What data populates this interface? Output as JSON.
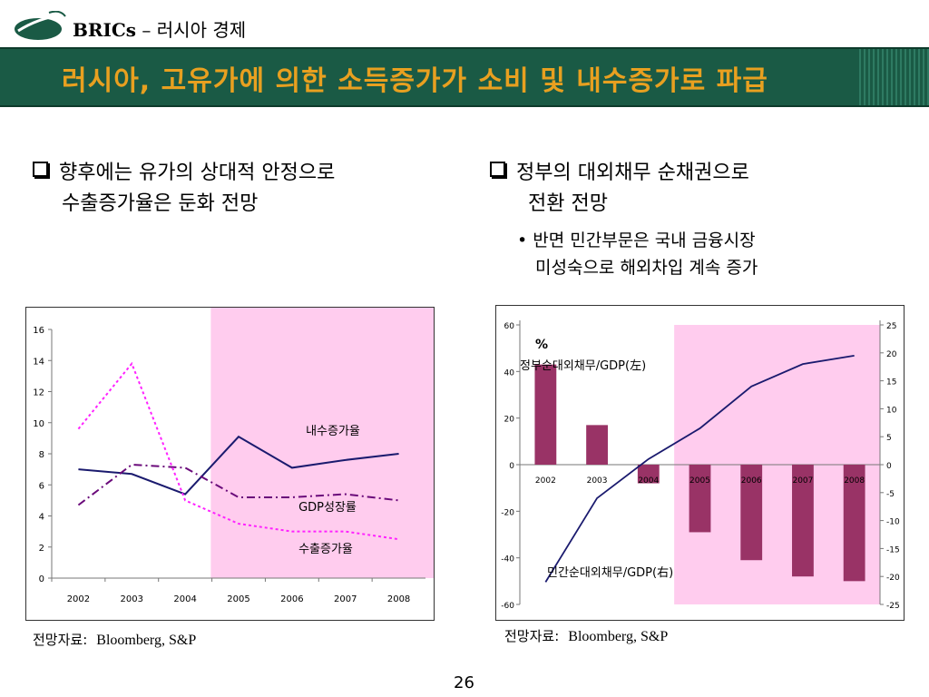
{
  "header": {
    "brand": "BRICs",
    "dash": " – ",
    "subtitle": "러시아 경제"
  },
  "banner": {
    "title": "러시아, 고유가에 의한 소득증가가 소비 및 내수증가로 파급"
  },
  "left_bullet": {
    "line1": "향후에는 유가의 상대적 안정으로",
    "line2": "수출증가율은 둔화 전망"
  },
  "right_bullet": {
    "line1": "정부의 대외채무 순채권으로",
    "line2": "전환 전망"
  },
  "right_sub": {
    "line1": "반면 민간부문은 국내 금융시장",
    "line2": "미성숙으로 해외차입 계속 증가"
  },
  "source_left": {
    "label": "전망자료:",
    "name": "Bloomberg, S&P"
  },
  "source_right": {
    "label": "전망자료:",
    "name": "Bloomberg, S&P"
  },
  "page_number": "26",
  "colors": {
    "banner": "#1a5a45",
    "banner_title": "#e8a020",
    "forecast_shade": "#ffccee",
    "navy": "#1a1a6e",
    "purple": "#6a0a7a",
    "magenta": "#ff22ff",
    "bar": "#993366"
  },
  "chart_data": [
    {
      "type": "line",
      "categories": [
        "2002",
        "2003",
        "2004",
        "2005",
        "2006",
        "2007",
        "2008"
      ],
      "ylim": [
        0,
        16
      ],
      "yticks": [
        "0",
        "2",
        "4",
        "6",
        "8",
        "10",
        "12",
        "14",
        "16"
      ],
      "forecast_from": "2005",
      "series": [
        {
          "name": "내수증가율",
          "style": "solid",
          "color": "#1a1a6e",
          "values": [
            7.0,
            6.7,
            5.4,
            9.1,
            7.1,
            7.6,
            8.0
          ]
        },
        {
          "name": "GDP성장률",
          "style": "dashdot",
          "color": "#6a0a7a",
          "values": [
            4.7,
            7.3,
            7.1,
            5.2,
            5.2,
            5.4,
            5.0
          ]
        },
        {
          "name": "수출증가율",
          "style": "dotted",
          "color": "#ff22ff",
          "values": [
            9.6,
            13.8,
            5.0,
            3.5,
            3.0,
            3.0,
            2.5
          ]
        }
      ]
    },
    {
      "type": "bar+line",
      "categories": [
        "2002",
        "2003",
        "2004",
        "2005",
        "2006",
        "2007",
        "2008"
      ],
      "unit": "%",
      "y_left": {
        "ylim": [
          -60,
          60
        ],
        "ticks": [
          "60",
          "40",
          "20",
          "0",
          "-20",
          "-40",
          "-60"
        ]
      },
      "y_right": {
        "ylim": [
          -25,
          25
        ],
        "ticks": [
          "25",
          "20",
          "15",
          "10",
          "5",
          "0",
          "-5",
          "-10",
          "-15",
          "-20",
          "-25"
        ]
      },
      "forecast_from": "2004",
      "series": [
        {
          "name": "정부순대외채무/GDP(左)",
          "type": "bar",
          "axis": "left",
          "color": "#993366",
          "values": [
            43,
            17,
            -8,
            -29,
            -41,
            -48,
            -50
          ]
        },
        {
          "name": "민간순대외채무/GDP(右)",
          "type": "line",
          "axis": "right",
          "color": "#1a1a6e",
          "values": [
            -21,
            -6,
            1,
            6.5,
            14,
            18,
            19.5
          ]
        }
      ]
    }
  ]
}
